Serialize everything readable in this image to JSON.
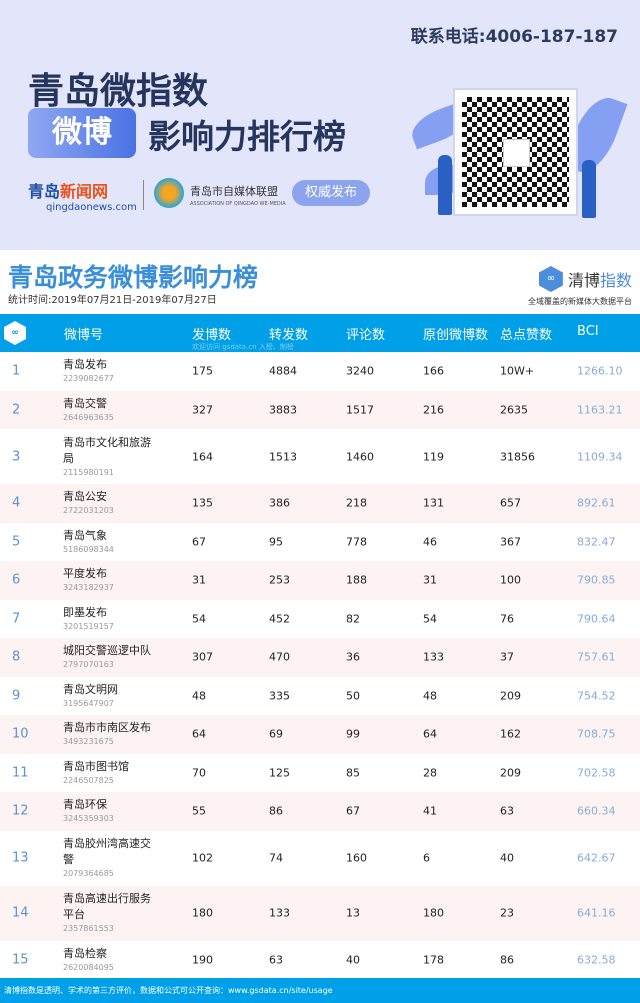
{
  "banner": {
    "phone": "联系电话:4006-187-187",
    "title_line1": "青岛微指数",
    "badge": "微博",
    "title_line2": "影响力排行榜",
    "logo_news_a": "青岛",
    "logo_news_b": "新闻网",
    "logo_news_url": "qingdaonews.com",
    "assoc_name": "青岛市自媒体联盟",
    "assoc_en": "ASSOCIATION OF QINGDAO WE-MEDIA",
    "auth_label": "权威发布"
  },
  "header": {
    "title": "青岛政务微博影响力榜",
    "period": "统计时间:2019年07月21日-2019年07月27日",
    "brand_a": "清博",
    "brand_b": "指数",
    "brand_sub": "全域覆盖的新媒体大数据平台"
  },
  "table": {
    "columns": [
      "微博号",
      "发博数",
      "转发数",
      "评论数",
      "原创微博数",
      "总点赞数",
      "BCI"
    ],
    "watermark": "欢迎访问 gsdata.cn 入榜、制榜",
    "rows": [
      {
        "rank": "1",
        "name": "青岛发布",
        "id": "2239082677",
        "posts": "175",
        "reposts": "4884",
        "comments": "3240",
        "original": "166",
        "likes": "10W+",
        "bci": "1266.10"
      },
      {
        "rank": "2",
        "name": "青岛交警",
        "id": "2646963635",
        "posts": "327",
        "reposts": "3883",
        "comments": "1517",
        "original": "216",
        "likes": "2635",
        "bci": "1163.21"
      },
      {
        "rank": "3",
        "name": "青岛市文化和旅游局",
        "id": "2115980191",
        "posts": "164",
        "reposts": "1513",
        "comments": "1460",
        "original": "119",
        "likes": "31856",
        "bci": "1109.34"
      },
      {
        "rank": "4",
        "name": "青岛公安",
        "id": "2722031203",
        "posts": "135",
        "reposts": "386",
        "comments": "218",
        "original": "131",
        "likes": "657",
        "bci": "892.61"
      },
      {
        "rank": "5",
        "name": "青岛气象",
        "id": "5186098344",
        "posts": "67",
        "reposts": "95",
        "comments": "778",
        "original": "46",
        "likes": "367",
        "bci": "832.47"
      },
      {
        "rank": "6",
        "name": "平度发布",
        "id": "3243182937",
        "posts": "31",
        "reposts": "253",
        "comments": "188",
        "original": "31",
        "likes": "100",
        "bci": "790.85"
      },
      {
        "rank": "7",
        "name": "即墨发布",
        "id": "3201519157",
        "posts": "54",
        "reposts": "452",
        "comments": "82",
        "original": "54",
        "likes": "76",
        "bci": "790.64"
      },
      {
        "rank": "8",
        "name": "城阳交警巡逻中队",
        "id": "2797070163",
        "posts": "307",
        "reposts": "470",
        "comments": "36",
        "original": "133",
        "likes": "37",
        "bci": "757.61"
      },
      {
        "rank": "9",
        "name": "青岛文明网",
        "id": "3195647907",
        "posts": "48",
        "reposts": "335",
        "comments": "50",
        "original": "48",
        "likes": "209",
        "bci": "754.52"
      },
      {
        "rank": "10",
        "name": "青岛市市南区发布",
        "id": "3493231675",
        "posts": "64",
        "reposts": "69",
        "comments": "99",
        "original": "64",
        "likes": "162",
        "bci": "708.75"
      },
      {
        "rank": "11",
        "name": "青岛市图书馆",
        "id": "2246507825",
        "posts": "70",
        "reposts": "125",
        "comments": "85",
        "original": "28",
        "likes": "209",
        "bci": "702.58"
      },
      {
        "rank": "12",
        "name": "青岛环保",
        "id": "3245359303",
        "posts": "55",
        "reposts": "86",
        "comments": "67",
        "original": "41",
        "likes": "63",
        "bci": "660.34"
      },
      {
        "rank": "13",
        "name": "青岛胶州湾高速交警",
        "id": "2079364685",
        "posts": "102",
        "reposts": "74",
        "comments": "160",
        "original": "6",
        "likes": "40",
        "bci": "642.67"
      },
      {
        "rank": "14",
        "name": "青岛高速出行服务平台",
        "id": "2357861553",
        "posts": "180",
        "reposts": "133",
        "comments": "13",
        "original": "180",
        "likes": "23",
        "bci": "641.16"
      },
      {
        "rank": "15",
        "name": "青岛检察",
        "id": "2620084095",
        "posts": "190",
        "reposts": "63",
        "comments": "40",
        "original": "178",
        "likes": "86",
        "bci": "632.58"
      }
    ]
  },
  "footer": "清博指数是透明、学术的第三方评价，数据和公式可公开查询：www.gsdata.cn/site/usage",
  "colors": {
    "accent": "#00a0e8",
    "title": "#3a8fd8",
    "bci": "#86acd9",
    "alt_row": "#fdf3f3",
    "banner_bg": "#e3e6fa"
  }
}
